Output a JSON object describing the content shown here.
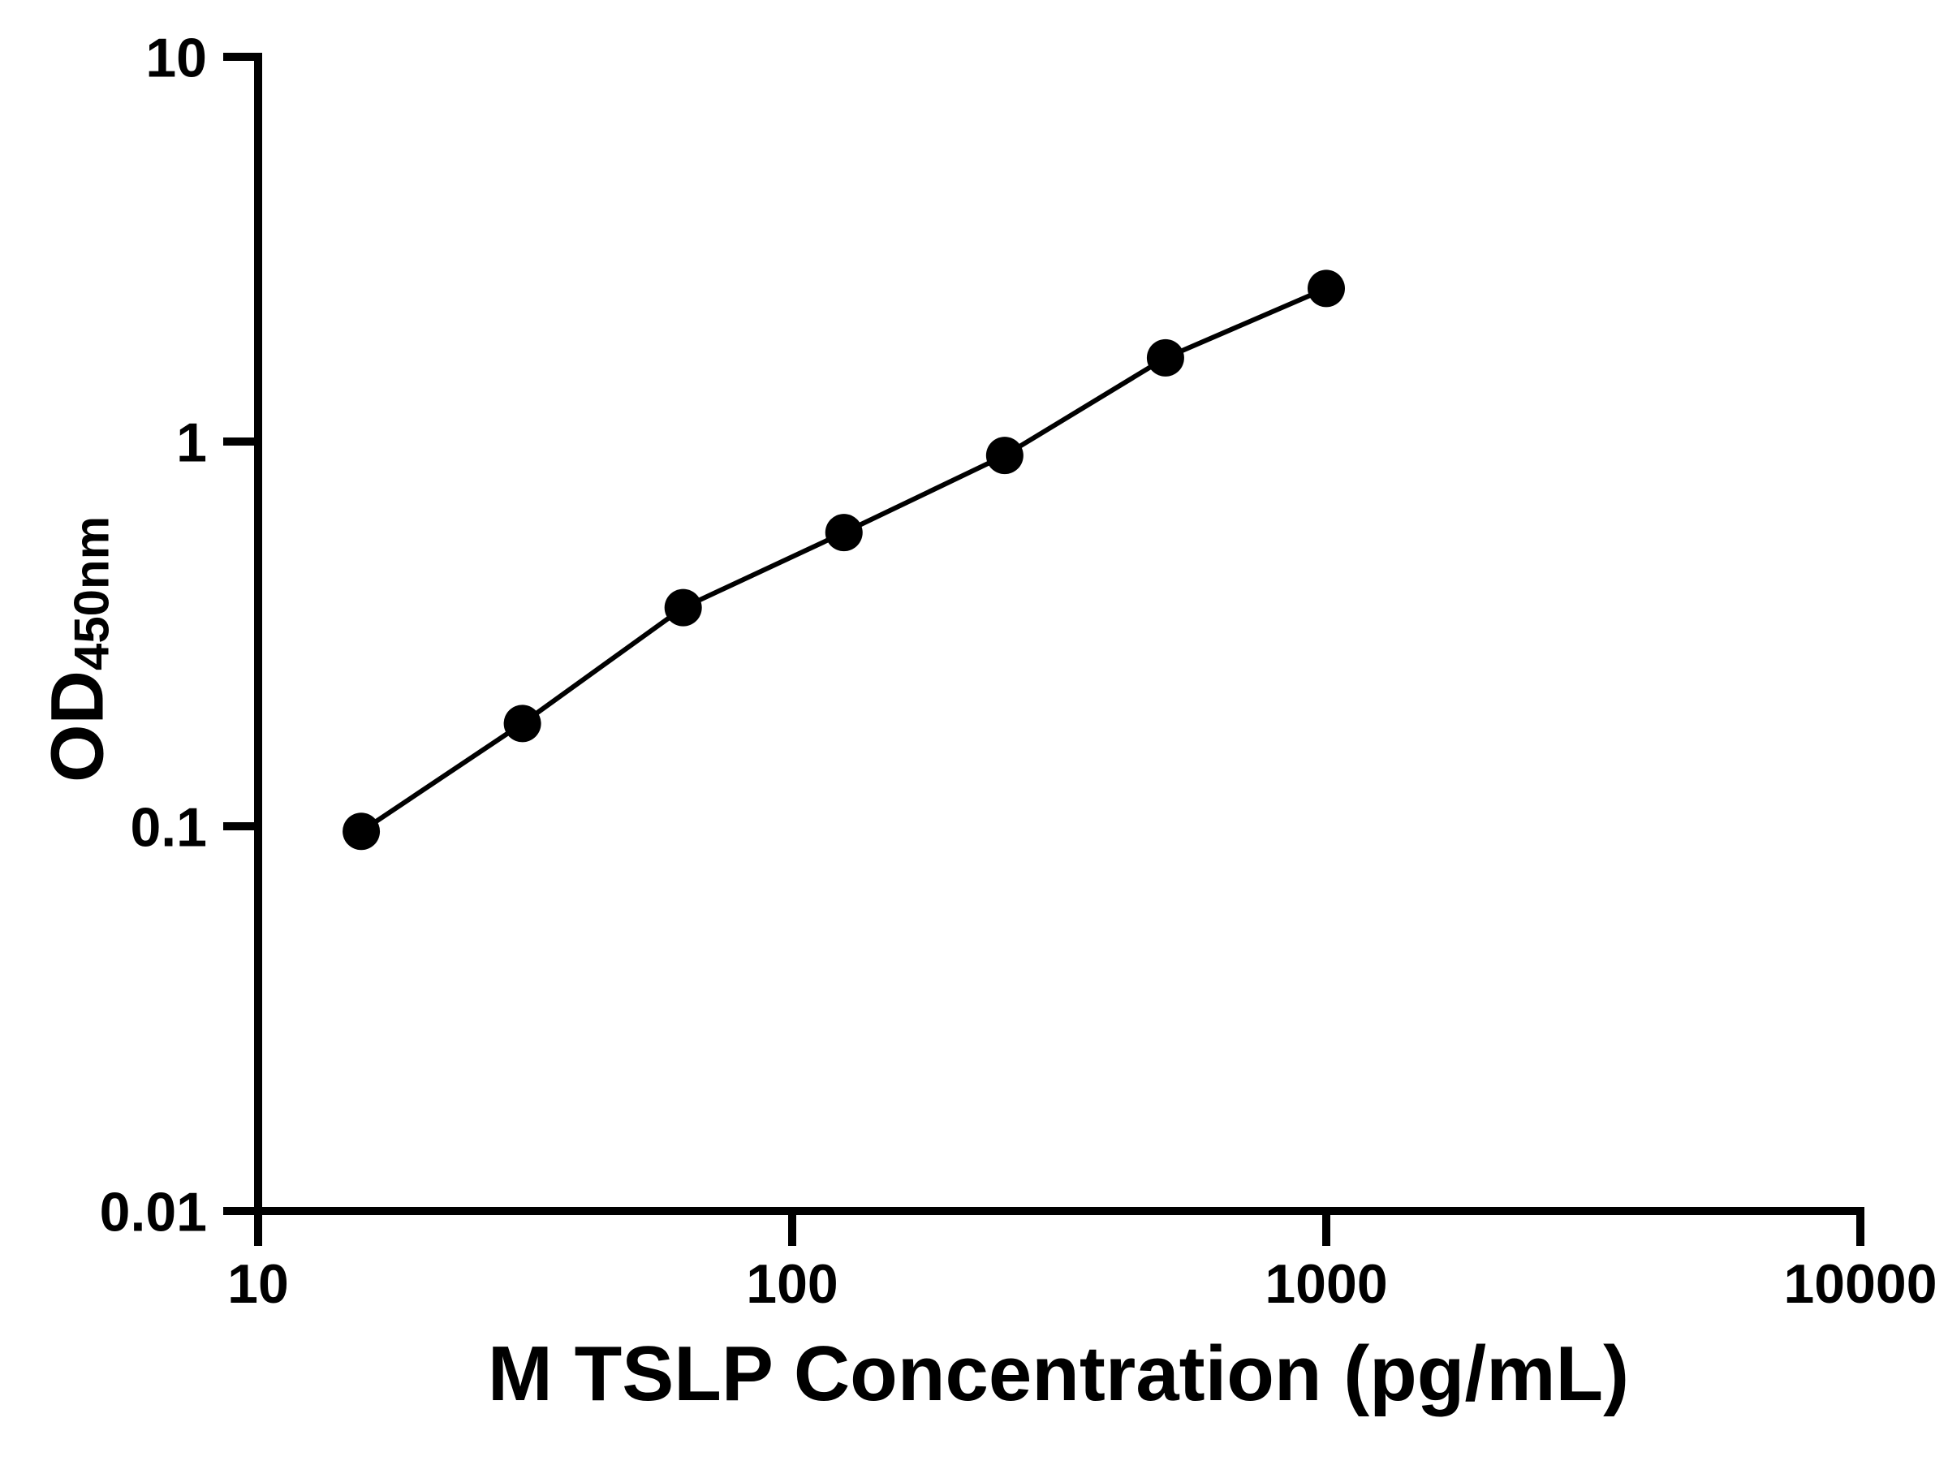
{
  "chart_data": {
    "type": "scatter",
    "title": "",
    "xlabel": "M TSLP Concentration (pg/mL)",
    "ylabel": "OD450nm",
    "ylabel_main": "OD",
    "ylabel_sub": "450nm",
    "x_scale": "log",
    "y_scale": "log",
    "xlim": [
      10,
      10000
    ],
    "ylim": [
      0.01,
      10
    ],
    "grid": false,
    "legend": false,
    "background_color": "#ffffff",
    "axis_color": "#000000",
    "x_ticks": [
      {
        "value": 10,
        "label": "10"
      },
      {
        "value": 100,
        "label": "100"
      },
      {
        "value": 1000,
        "label": "1000"
      },
      {
        "value": 10000,
        "label": "10000"
      }
    ],
    "y_ticks": [
      {
        "value": 10,
        "label": "10"
      },
      {
        "value": 1,
        "label": "1"
      },
      {
        "value": 0.1,
        "label": "0.1"
      },
      {
        "value": 0.01,
        "label": "0.01"
      }
    ],
    "series": [
      {
        "marker": "circle",
        "marker_color": "#000000",
        "line_color": "#000000",
        "points": [
          {
            "x": 15.6,
            "y": 0.097
          },
          {
            "x": 31.25,
            "y": 0.185
          },
          {
            "x": 62.5,
            "y": 0.37
          },
          {
            "x": 125,
            "y": 0.58
          },
          {
            "x": 250,
            "y": 0.92
          },
          {
            "x": 500,
            "y": 1.65
          },
          {
            "x": 1000,
            "y": 2.5
          }
        ]
      }
    ]
  }
}
